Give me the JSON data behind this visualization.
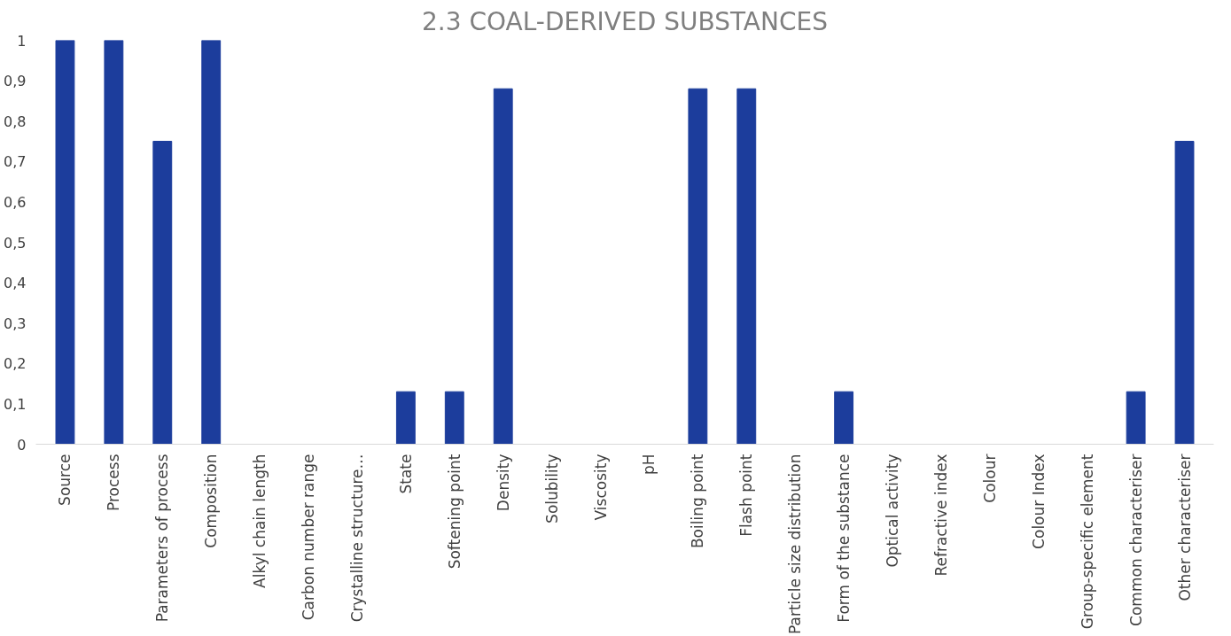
{
  "chart_data": {
    "type": "bar",
    "title": "2.3 COAL-DERIVED SUBSTANCES",
    "categories": [
      "Source",
      "Process",
      "Parameters of process",
      "Composition",
      "Alkyl chain length",
      "Carbon number range",
      "Crystalline structure…",
      "State",
      "Softening point",
      "Density",
      "Solubility",
      "Viscosity",
      "pH",
      "Boiling point",
      "Flash point",
      "Particle size distribution",
      "Form of the substance",
      "Optical activity",
      "Refractive index",
      "Colour",
      "Colour Index",
      "Group-specific element",
      "Common characteriser",
      "Other characteriser"
    ],
    "values": [
      1,
      1,
      0.75,
      1,
      0,
      0,
      0,
      0.13,
      0.13,
      0.88,
      0,
      0,
      0,
      0.88,
      0.88,
      0,
      0.13,
      0,
      0,
      0,
      0,
      0,
      0.13,
      0.75
    ],
    "color": "#1c3d9c",
    "ylim": [
      0,
      1
    ],
    "yticks": [
      0,
      {
        "value": 0.1,
        "label": "0,1"
      },
      {
        "value": 0.2,
        "label": "0,2"
      },
      {
        "value": 0.3,
        "label": "0,3"
      },
      {
        "value": 0.4,
        "label": "0,4"
      },
      {
        "value": 0.5,
        "label": "0,5"
      },
      {
        "value": 0.6,
        "label": "0,6"
      },
      {
        "value": 0.7,
        "label": "0,7"
      },
      {
        "value": 0.8,
        "label": "0,8"
      },
      {
        "value": 0.9,
        "label": "0,9"
      },
      1
    ],
    "grid": false
  }
}
